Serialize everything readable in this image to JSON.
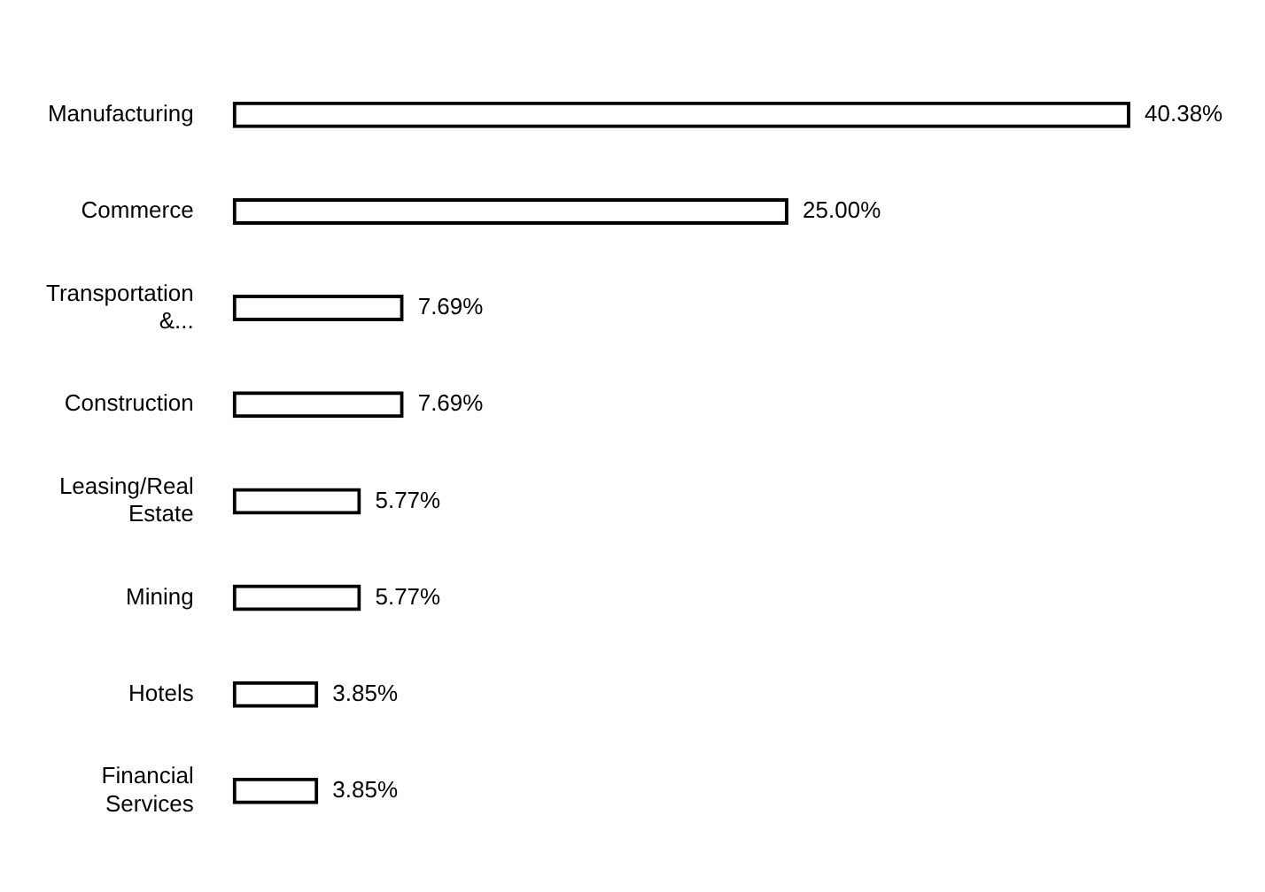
{
  "chart_data": {
    "type": "bar",
    "orientation": "horizontal",
    "categories": [
      "Manufacturing",
      "Commerce",
      "Transportation &...",
      "Construction",
      "Leasing/Real Estate",
      "Mining",
      "Hotels",
      "Financial Services"
    ],
    "values": [
      40.38,
      25.0,
      7.69,
      7.69,
      5.77,
      5.77,
      3.85,
      3.85
    ],
    "value_labels": [
      "40.38%",
      "25.00%",
      "7.69%",
      "7.69%",
      "5.77%",
      "5.77%",
      "3.85%",
      "3.85%"
    ],
    "color": "#000000",
    "tick_labels": "y",
    "grid": false,
    "legend": false
  }
}
